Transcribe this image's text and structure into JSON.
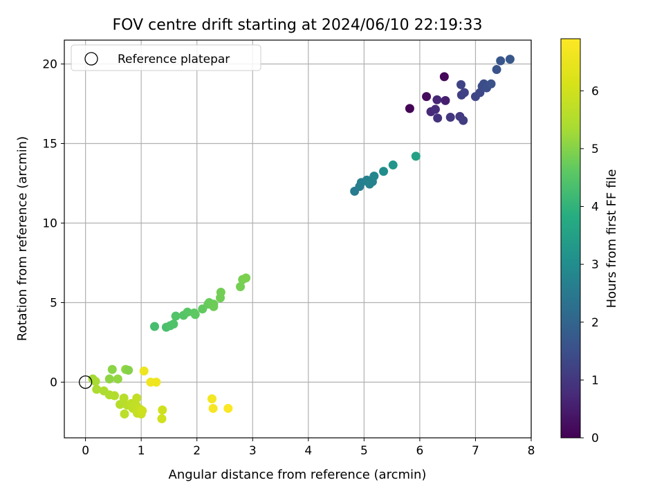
{
  "chart_data": {
    "type": "scatter",
    "title": "FOV centre drift starting at 2024/06/10 22:19:33",
    "xlabel": "Angular distance from reference (arcmin)",
    "ylabel": "Rotation from reference (arcmin)",
    "xlim": [
      -0.38,
      8.0
    ],
    "ylim": [
      -3.5,
      21.5
    ],
    "xticks": [
      0,
      1,
      2,
      3,
      4,
      5,
      6,
      7,
      8
    ],
    "yticks": [
      0,
      5,
      10,
      15,
      20
    ],
    "grid": true,
    "legend": {
      "position": "top-left",
      "entries": [
        {
          "label": "Reference platepar",
          "marker": "open-circle"
        }
      ]
    },
    "reference_point": {
      "x": 0,
      "y": 0
    },
    "colorbar": {
      "label": "Hours from first FF file",
      "colormap": "viridis",
      "range": [
        0,
        6.9
      ],
      "ticks": [
        0,
        1,
        2,
        3,
        4,
        5,
        6
      ]
    },
    "points": [
      {
        "x": 5.82,
        "y": 17.2,
        "c": 0.05
      },
      {
        "x": 6.44,
        "y": 19.2,
        "c": 0.1
      },
      {
        "x": 6.12,
        "y": 17.95,
        "c": 0.2
      },
      {
        "x": 6.46,
        "y": 17.7,
        "c": 0.55
      },
      {
        "x": 6.31,
        "y": 17.75,
        "c": 0.7
      },
      {
        "x": 6.2,
        "y": 17.0,
        "c": 0.75
      },
      {
        "x": 6.28,
        "y": 17.15,
        "c": 0.8
      },
      {
        "x": 6.32,
        "y": 16.6,
        "c": 0.9
      },
      {
        "x": 6.55,
        "y": 16.65,
        "c": 1.0
      },
      {
        "x": 6.72,
        "y": 16.7,
        "c": 1.05
      },
      {
        "x": 6.78,
        "y": 16.45,
        "c": 1.1
      },
      {
        "x": 6.75,
        "y": 18.05,
        "c": 1.15
      },
      {
        "x": 6.8,
        "y": 18.2,
        "c": 1.2
      },
      {
        "x": 6.74,
        "y": 18.7,
        "c": 1.25
      },
      {
        "x": 7.0,
        "y": 17.95,
        "c": 1.3
      },
      {
        "x": 7.08,
        "y": 18.2,
        "c": 1.35
      },
      {
        "x": 7.12,
        "y": 18.6,
        "c": 1.4
      },
      {
        "x": 7.15,
        "y": 18.75,
        "c": 1.45
      },
      {
        "x": 7.2,
        "y": 18.5,
        "c": 1.5
      },
      {
        "x": 7.28,
        "y": 18.75,
        "c": 1.55
      },
      {
        "x": 7.38,
        "y": 19.65,
        "c": 1.6
      },
      {
        "x": 7.45,
        "y": 20.2,
        "c": 1.65
      },
      {
        "x": 7.62,
        "y": 20.3,
        "c": 1.7
      },
      {
        "x": 4.83,
        "y": 12.0,
        "c": 2.55
      },
      {
        "x": 4.92,
        "y": 12.3,
        "c": 2.6
      },
      {
        "x": 4.95,
        "y": 12.55,
        "c": 2.65
      },
      {
        "x": 5.05,
        "y": 12.7,
        "c": 2.7
      },
      {
        "x": 5.1,
        "y": 12.45,
        "c": 2.72
      },
      {
        "x": 5.15,
        "y": 12.6,
        "c": 2.75
      },
      {
        "x": 5.18,
        "y": 12.95,
        "c": 2.8
      },
      {
        "x": 5.35,
        "y": 13.25,
        "c": 3.0
      },
      {
        "x": 5.52,
        "y": 13.65,
        "c": 3.2
      },
      {
        "x": 5.93,
        "y": 14.2,
        "c": 3.5
      },
      {
        "x": 1.24,
        "y": 3.5,
        "c": 4.3
      },
      {
        "x": 1.45,
        "y": 3.45,
        "c": 4.35
      },
      {
        "x": 1.52,
        "y": 3.55,
        "c": 4.4
      },
      {
        "x": 1.58,
        "y": 3.65,
        "c": 4.42
      },
      {
        "x": 1.62,
        "y": 4.15,
        "c": 4.45
      },
      {
        "x": 1.76,
        "y": 4.2,
        "c": 4.5
      },
      {
        "x": 1.83,
        "y": 4.4,
        "c": 4.55
      },
      {
        "x": 1.95,
        "y": 4.35,
        "c": 4.6
      },
      {
        "x": 1.97,
        "y": 4.25,
        "c": 4.62
      },
      {
        "x": 2.1,
        "y": 4.6,
        "c": 4.65
      },
      {
        "x": 2.2,
        "y": 4.9,
        "c": 4.7
      },
      {
        "x": 2.22,
        "y": 5.0,
        "c": 4.72
      },
      {
        "x": 2.3,
        "y": 4.9,
        "c": 4.75
      },
      {
        "x": 2.3,
        "y": 4.75,
        "c": 4.77
      },
      {
        "x": 2.42,
        "y": 5.3,
        "c": 4.8
      },
      {
        "x": 2.43,
        "y": 5.65,
        "c": 4.82
      },
      {
        "x": 2.78,
        "y": 6.0,
        "c": 4.85
      },
      {
        "x": 2.82,
        "y": 6.45,
        "c": 4.88
      },
      {
        "x": 2.88,
        "y": 6.55,
        "c": 4.9
      },
      {
        "x": 0.13,
        "y": 0.2,
        "c": 5.3
      },
      {
        "x": 0.18,
        "y": 0.05,
        "c": 5.35
      },
      {
        "x": 0.2,
        "y": -0.45,
        "c": 5.4
      },
      {
        "x": 0.33,
        "y": -0.55,
        "c": 5.42
      },
      {
        "x": 0.43,
        "y": 0.2,
        "c": 5.1
      },
      {
        "x": 0.48,
        "y": 0.8,
        "c": 5.05
      },
      {
        "x": 0.58,
        "y": 0.2,
        "c": 5.15
      },
      {
        "x": 0.72,
        "y": 0.8,
        "c": 5.1
      },
      {
        "x": 0.77,
        "y": 0.75,
        "c": 5.0
      },
      {
        "x": 0.43,
        "y": -0.8,
        "c": 5.45
      },
      {
        "x": 0.52,
        "y": -0.85,
        "c": 5.5
      },
      {
        "x": 0.62,
        "y": -1.4,
        "c": 5.55
      },
      {
        "x": 0.69,
        "y": -1.0,
        "c": 5.6
      },
      {
        "x": 0.7,
        "y": -2.0,
        "c": 5.65
      },
      {
        "x": 0.75,
        "y": -1.45,
        "c": 5.62
      },
      {
        "x": 0.82,
        "y": -1.35,
        "c": 5.7
      },
      {
        "x": 0.85,
        "y": -1.65,
        "c": 5.72
      },
      {
        "x": 0.91,
        "y": -1.45,
        "c": 5.75
      },
      {
        "x": 0.92,
        "y": -1.0,
        "c": 5.78
      },
      {
        "x": 0.93,
        "y": -1.95,
        "c": 5.8
      },
      {
        "x": 0.98,
        "y": -1.7,
        "c": 5.85
      },
      {
        "x": 1.0,
        "y": -2.0,
        "c": 5.9
      },
      {
        "x": 1.02,
        "y": -1.8,
        "c": 5.95
      },
      {
        "x": 1.38,
        "y": -1.75,
        "c": 5.98
      },
      {
        "x": 1.37,
        "y": -2.3,
        "c": 6.0
      },
      {
        "x": 1.05,
        "y": 0.7,
        "c": 6.55
      },
      {
        "x": 1.17,
        "y": 0.0,
        "c": 6.6
      },
      {
        "x": 1.27,
        "y": 0.0,
        "c": 6.62
      },
      {
        "x": 2.27,
        "y": -1.05,
        "c": 6.7
      },
      {
        "x": 2.29,
        "y": -1.65,
        "c": 6.75
      },
      {
        "x": 2.56,
        "y": -1.65,
        "c": 6.85
      }
    ]
  }
}
